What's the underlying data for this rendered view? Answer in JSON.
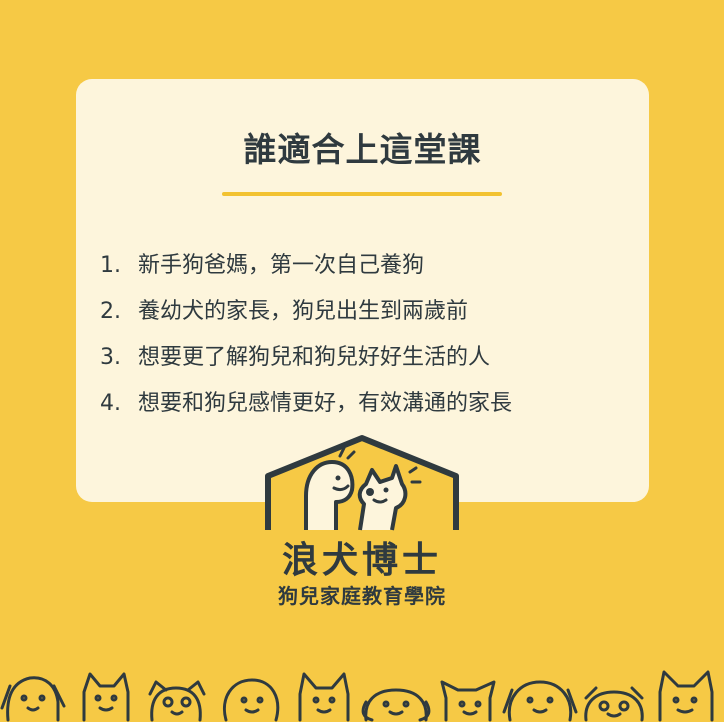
{
  "card": {
    "title": "誰適合上這堂課",
    "items": [
      {
        "num": "1.",
        "text": "新手狗爸媽，第一次自己養狗"
      },
      {
        "num": "2.",
        "text": "養幼犬的家長，狗兒出生到兩歲前"
      },
      {
        "num": "3.",
        "text": "想要更了解狗兒和狗兒好好生活的人"
      },
      {
        "num": "4.",
        "text": "想要和狗兒感情更好，有效溝通的家長"
      }
    ]
  },
  "brand": {
    "name": "浪犬博士",
    "subtitle": "狗兒家庭教育學院"
  },
  "colors": {
    "background": "#f6c945",
    "card": "#fdf5dc",
    "text": "#2f3a3f",
    "accent": "#f2c231"
  }
}
